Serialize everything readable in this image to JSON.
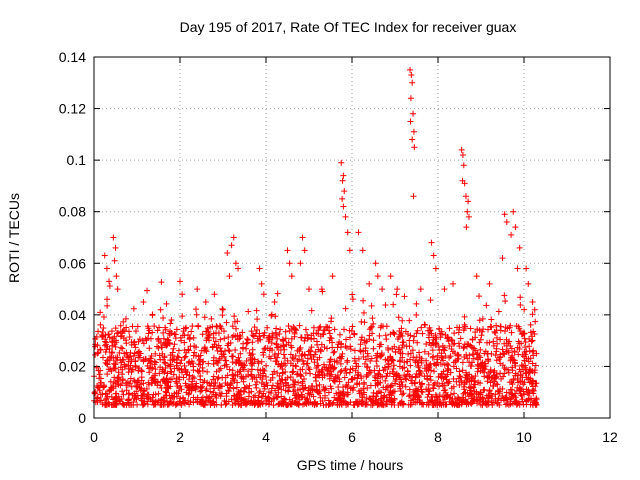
{
  "chart_data": {
    "type": "scatter",
    "title": "Day 195 of 2017, Rate Of TEC Index for receiver guax",
    "xlabel": "GPS time / hours",
    "ylabel": "ROTI / TECUs",
    "xlim": [
      0,
      12
    ],
    "ylim": [
      0,
      0.14
    ],
    "x_ticks": [
      "0",
      "2",
      "4",
      "6",
      "8",
      "10",
      "12"
    ],
    "y_ticks": [
      "0",
      "0.02",
      "0.04",
      "0.06",
      "0.08",
      "0.1",
      "0.12",
      "0.14"
    ],
    "grid": true,
    "marker": "+",
    "color": "#ff0000",
    "x_range_of_data": [
      0.0,
      10.3
    ],
    "baseline_range": [
      0.005,
      0.03
    ],
    "series": [
      {
        "name": "ROTI",
        "points": [
          [
            7.35,
            0.135
          ],
          [
            7.38,
            0.133
          ],
          [
            7.4,
            0.13
          ],
          [
            7.37,
            0.124
          ],
          [
            7.42,
            0.118
          ],
          [
            7.36,
            0.115
          ],
          [
            7.44,
            0.111
          ],
          [
            7.4,
            0.108
          ],
          [
            7.45,
            0.105
          ],
          [
            7.43,
            0.086
          ],
          [
            8.55,
            0.104
          ],
          [
            8.58,
            0.102
          ],
          [
            8.6,
            0.098
          ],
          [
            8.57,
            0.092
          ],
          [
            8.62,
            0.091
          ],
          [
            8.65,
            0.086
          ],
          [
            8.7,
            0.084
          ],
          [
            8.68,
            0.08
          ],
          [
            8.72,
            0.078
          ],
          [
            8.66,
            0.074
          ],
          [
            5.75,
            0.099
          ],
          [
            5.8,
            0.094
          ],
          [
            5.78,
            0.092
          ],
          [
            5.82,
            0.088
          ],
          [
            5.77,
            0.085
          ],
          [
            5.8,
            0.082
          ],
          [
            5.85,
            0.078
          ],
          [
            5.9,
            0.072
          ],
          [
            5.95,
            0.065
          ],
          [
            9.55,
            0.079
          ],
          [
            9.75,
            0.08
          ],
          [
            9.6,
            0.076
          ],
          [
            9.8,
            0.074
          ],
          [
            9.7,
            0.071
          ],
          [
            9.9,
            0.066
          ],
          [
            9.5,
            0.062
          ],
          [
            9.85,
            0.058
          ],
          [
            0.45,
            0.07
          ],
          [
            0.5,
            0.066
          ],
          [
            0.48,
            0.061
          ],
          [
            0.52,
            0.055
          ],
          [
            0.55,
            0.05
          ],
          [
            0.25,
            0.063
          ],
          [
            0.3,
            0.058
          ],
          [
            0.35,
            0.053
          ],
          [
            3.25,
            0.07
          ],
          [
            3.2,
            0.067
          ],
          [
            3.3,
            0.06
          ],
          [
            3.15,
            0.055
          ],
          [
            3.1,
            0.064
          ],
          [
            3.35,
            0.058
          ],
          [
            3.85,
            0.058
          ],
          [
            3.9,
            0.052
          ],
          [
            3.95,
            0.048
          ],
          [
            4.85,
            0.07
          ],
          [
            4.9,
            0.065
          ],
          [
            4.8,
            0.06
          ],
          [
            4.5,
            0.065
          ],
          [
            4.55,
            0.06
          ],
          [
            4.6,
            0.055
          ],
          [
            6.55,
            0.06
          ],
          [
            6.6,
            0.055
          ],
          [
            6.7,
            0.05
          ],
          [
            6.15,
            0.072
          ],
          [
            6.25,
            0.065
          ],
          [
            7.85,
            0.068
          ],
          [
            7.9,
            0.063
          ],
          [
            7.95,
            0.058
          ],
          [
            10.05,
            0.058
          ],
          [
            10.1,
            0.052
          ],
          [
            1.15,
            0.045
          ],
          [
            1.55,
            0.042
          ],
          [
            1.8,
            0.038
          ],
          [
            2.0,
            0.053
          ],
          [
            2.05,
            0.048
          ],
          [
            2.4,
            0.05
          ],
          [
            2.6,
            0.045
          ],
          [
            2.8,
            0.048
          ],
          [
            3.0,
            0.042
          ],
          [
            4.2,
            0.045
          ],
          [
            5.0,
            0.05
          ],
          [
            5.3,
            0.05
          ],
          [
            5.55,
            0.055
          ],
          [
            6.4,
            0.052
          ],
          [
            6.9,
            0.055
          ],
          [
            7.05,
            0.05
          ],
          [
            7.6,
            0.05
          ],
          [
            8.15,
            0.05
          ],
          [
            8.35,
            0.052
          ],
          [
            8.9,
            0.055
          ],
          [
            9.2,
            0.052
          ],
          [
            10.2,
            0.045
          ],
          [
            10.25,
            0.042
          ]
        ]
      }
    ]
  }
}
